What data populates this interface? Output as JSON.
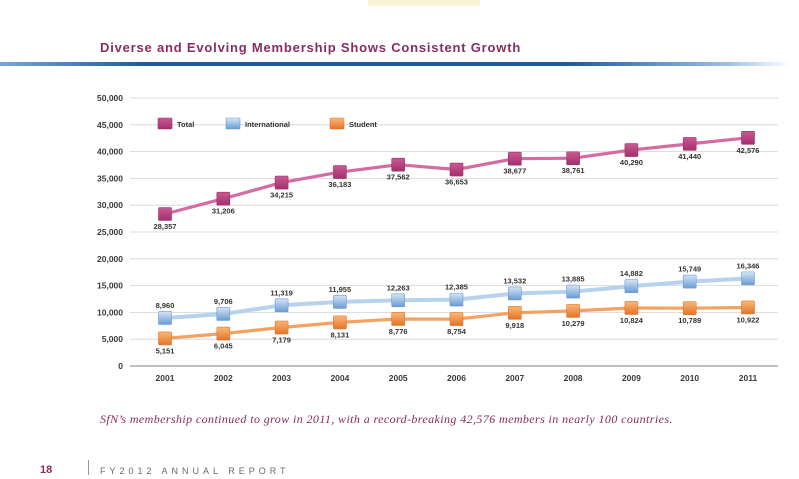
{
  "chart_data": {
    "type": "line",
    "title": "Diverse and Evolving Membership Shows Consistent Growth",
    "xlabel": "",
    "ylabel": "",
    "categories": [
      "2001",
      "2002",
      "2003",
      "2004",
      "2005",
      "2006",
      "2007",
      "2008",
      "2009",
      "2010",
      "2011"
    ],
    "ylim": [
      0,
      50000
    ],
    "yticks": [
      0,
      5000,
      10000,
      15000,
      20000,
      25000,
      30000,
      35000,
      40000,
      45000,
      50000
    ],
    "ytick_labels": [
      "0",
      "5,000",
      "10,000",
      "15,000",
      "20,000",
      "25,000",
      "30,000",
      "35,000",
      "40,000",
      "45,000",
      "50,000"
    ],
    "grid": true,
    "legend": "top-left",
    "series": [
      {
        "name": "Total",
        "line_color": "#d46ba3",
        "marker_color": "#a3306d",
        "marker_light": "#c85a93",
        "values": [
          28357,
          31206,
          34215,
          36183,
          37562,
          36653,
          38677,
          38761,
          40290,
          41440,
          42576
        ],
        "data_labels": [
          "28,357",
          "31,206",
          "34,215",
          "36,183",
          "37,562",
          "36,653",
          "38,677",
          "38,761",
          "40,290",
          "41,440",
          "42,576"
        ],
        "label_position": "below"
      },
      {
        "name": "International",
        "line_color": "#b7d2ee",
        "marker_color": "#6a9bd3",
        "marker_light": "#d4e5f6",
        "values": [
          8960,
          9706,
          11319,
          11955,
          12263,
          12385,
          13532,
          13885,
          14882,
          15749,
          16346
        ],
        "data_labels": [
          "8,960",
          "9,706",
          "11,319",
          "11,955",
          "12,263",
          "12,385",
          "13,532",
          "13,885",
          "14,882",
          "15,749",
          "16,346"
        ],
        "label_position": "above"
      },
      {
        "name": "Student",
        "line_color": "#f3a262",
        "marker_color": "#e3742a",
        "marker_light": "#fbb878",
        "values": [
          5151,
          6045,
          7179,
          8131,
          8776,
          8754,
          9918,
          10279,
          10824,
          10789,
          10922
        ],
        "data_labels": [
          "5,151",
          "6,045",
          "7,179",
          "8,131",
          "8,776",
          "8,754",
          "9,918",
          "10,279",
          "10,824",
          "10,789",
          "10,922"
        ],
        "label_position": "below"
      }
    ]
  },
  "caption": "SfN’s membership continued to grow in 2011, with a record-breaking 42,576 members in nearly 100 countries.",
  "footer": {
    "page_number": "18",
    "report_label": "FY2012 ANNUAL REPORT"
  }
}
